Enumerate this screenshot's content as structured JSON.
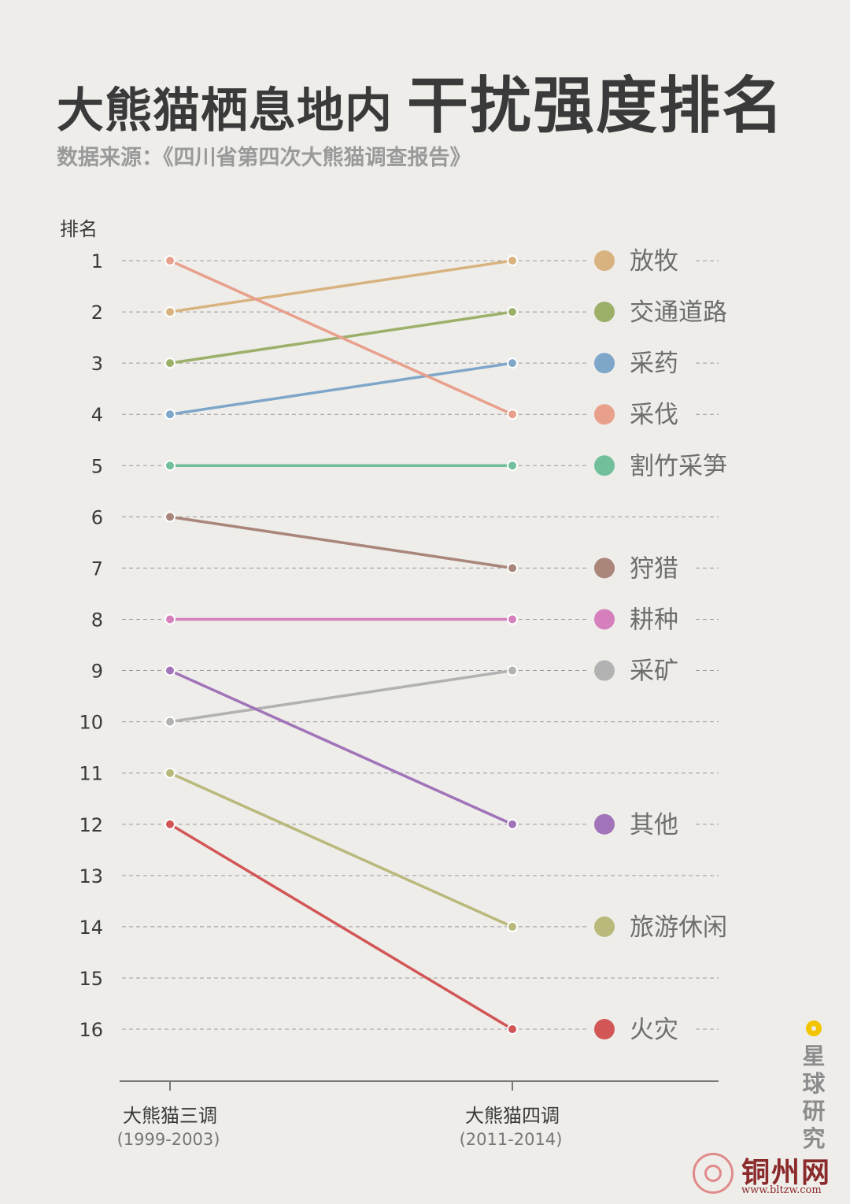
{
  "header": {
    "title_part1": "大熊猫栖息地内",
    "title_part2": "干扰强度排名",
    "source": "数据来源：《四川省第四次大熊猫调查报告》"
  },
  "chart_data": {
    "type": "line",
    "subtype": "slope",
    "ylabel": "排名",
    "y_ticks": [
      "1",
      "2",
      "3",
      "4",
      "5",
      "6",
      "7",
      "8",
      "9",
      "10",
      "11",
      "12",
      "13",
      "14",
      "15",
      "16"
    ],
    "ylim": [
      1,
      16
    ],
    "y_inverted": true,
    "grid": true,
    "x": [
      {
        "label": "大熊猫三调",
        "period": "(1999-2003)"
      },
      {
        "label": "大熊猫四调",
        "period": "(2011-2014)"
      }
    ],
    "series": [
      {
        "name": "放牧",
        "color": "#d8b27f",
        "values": [
          2,
          1
        ]
      },
      {
        "name": "交通道路",
        "color": "#9cb06a",
        "values": [
          3,
          2
        ]
      },
      {
        "name": "采药",
        "color": "#7ea6c9",
        "values": [
          4,
          3
        ]
      },
      {
        "name": "采伐",
        "color": "#e8a08c",
        "values": [
          1,
          4
        ]
      },
      {
        "name": "割竹采笋",
        "color": "#72bf9c",
        "values": [
          5,
          5
        ]
      },
      {
        "name": "狩猎",
        "color": "#a9857a",
        "values": [
          6,
          7
        ]
      },
      {
        "name": "耕种",
        "color": "#d67fbd",
        "values": [
          8,
          8
        ]
      },
      {
        "name": "采矿",
        "color": "#b2b2b2",
        "values": [
          10,
          9
        ]
      },
      {
        "name": "其他",
        "color": "#a173b8",
        "values": [
          9,
          12
        ]
      },
      {
        "name": "旅游休闲",
        "color": "#b9b97c",
        "values": [
          11,
          14
        ]
      },
      {
        "name": "火灾",
        "color": "#d25656",
        "values": [
          12,
          16
        ]
      }
    ]
  },
  "branding": {
    "name_chars": [
      "星",
      "球",
      "研",
      "究"
    ],
    "dot_color": "#f3c400"
  },
  "watermark": {
    "name": "铜州网",
    "url": "www.bltzw.com"
  }
}
